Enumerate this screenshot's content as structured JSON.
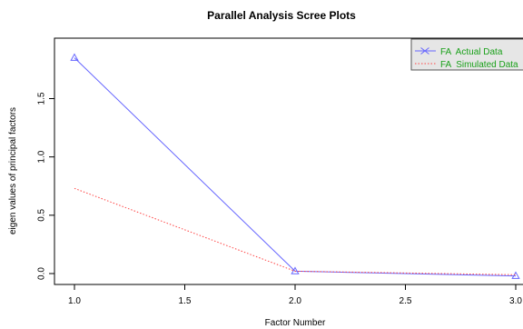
{
  "chart_data": {
    "type": "line",
    "title": "Parallel Analysis Scree Plots",
    "xlabel": "Factor Number",
    "ylabel": "eigen values of principal factors",
    "x": [
      1,
      2,
      3
    ],
    "xlim": [
      1,
      3
    ],
    "ylim": [
      -0.05,
      1.9
    ],
    "xticks": [
      "1.0",
      "1.5",
      "2.0",
      "2.5",
      "3.0"
    ],
    "yticks": [
      "0.0",
      "0.5",
      "1.0",
      "1.5"
    ],
    "grid": false,
    "legend_position": "top-right",
    "series": [
      {
        "name": "FA  Actual Data",
        "values": [
          1.85,
          0.02,
          -0.02
        ],
        "color": "#6666ff",
        "style": "solid",
        "marker": "triangle"
      },
      {
        "name": "FA  Simulated Data",
        "values": [
          0.73,
          0.02,
          -0.01
        ],
        "color": "#ff4444",
        "style": "dotted",
        "marker": "none"
      }
    ]
  }
}
